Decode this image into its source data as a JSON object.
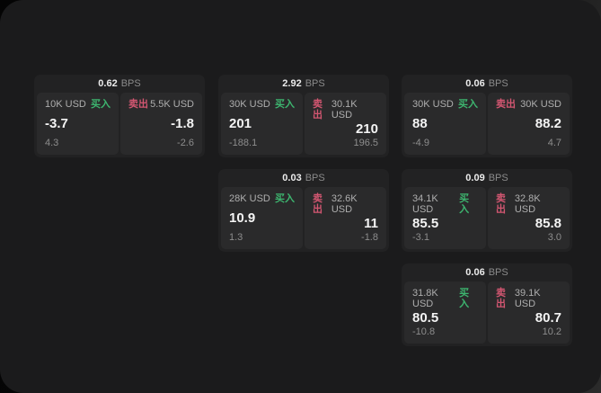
{
  "labels": {
    "bps_unit": "BPS",
    "buy": "买入",
    "sell": "卖出"
  },
  "colors": {
    "buy_green": "#3db56f",
    "sell_red": "#d25671",
    "frame_bg": "#1b1b1c",
    "card_bg": "#222223",
    "panel_bg": "#2a2a2b"
  },
  "cards": [
    {
      "bps": "0.62",
      "buy": {
        "amount": "10K USD",
        "value": "-3.7",
        "delta": "4.3"
      },
      "sell": {
        "amount": "5.5K USD",
        "value": "-1.8",
        "delta": "-2.6"
      }
    },
    {
      "bps": "2.92",
      "buy": {
        "amount": "30K USD",
        "value": "201",
        "delta": "-188.1"
      },
      "sell": {
        "amount": "30.1K USD",
        "value": "210",
        "delta": "196.5"
      }
    },
    {
      "bps": "0.06",
      "buy": {
        "amount": "30K USD",
        "value": "88",
        "delta": "-4.9"
      },
      "sell": {
        "amount": "30K USD",
        "value": "88.2",
        "delta": "4.7"
      }
    },
    {
      "bps": "0.03",
      "buy": {
        "amount": "28K USD",
        "value": "10.9",
        "delta": "1.3"
      },
      "sell": {
        "amount": "32.6K USD",
        "value": "11",
        "delta": "-1.8"
      }
    },
    {
      "bps": "0.09",
      "buy": {
        "amount": "34.1K USD",
        "value": "85.5",
        "delta": "-3.1"
      },
      "sell": {
        "amount": "32.8K USD",
        "value": "85.8",
        "delta": "3.0"
      }
    },
    {
      "bps": "0.06",
      "buy": {
        "amount": "31.8K USD",
        "value": "80.5",
        "delta": "-10.8"
      },
      "sell": {
        "amount": "39.1K USD",
        "value": "80.7",
        "delta": "10.2"
      }
    }
  ]
}
